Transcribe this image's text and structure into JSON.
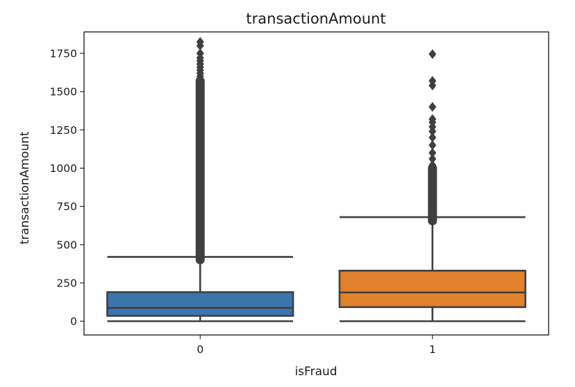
{
  "chart_data": {
    "type": "box",
    "title": "transactionAmount",
    "xlabel": "isFraud",
    "ylabel": "transactionAmount",
    "ylim": [
      -90,
      1890
    ],
    "yticks": [
      0,
      250,
      500,
      750,
      1000,
      1250,
      1500,
      1750
    ],
    "categories": [
      "0",
      "1"
    ],
    "grid": false,
    "boxes": [
      {
        "category": "0",
        "color": "#3a75ae",
        "whisker_low": 0,
        "q1": 35,
        "median": 87,
        "q3": 190,
        "whisker_high": 420,
        "outlier_range": [
          400,
          1570
        ],
        "outliers": [
          1580,
          1600,
          1620,
          1640,
          1660,
          1680,
          1700,
          1720,
          1750,
          1800,
          1825
        ]
      },
      {
        "category": "1",
        "color": "#e1812c",
        "whisker_low": 0,
        "q1": 92,
        "median": 188,
        "q3": 330,
        "whisker_high": 680,
        "outlier_range": [
          655,
          1000
        ],
        "outliers": [
          1020,
          1060,
          1100,
          1150,
          1200,
          1240,
          1270,
          1300,
          1320,
          1400,
          1540,
          1570,
          1745
        ]
      }
    ]
  }
}
